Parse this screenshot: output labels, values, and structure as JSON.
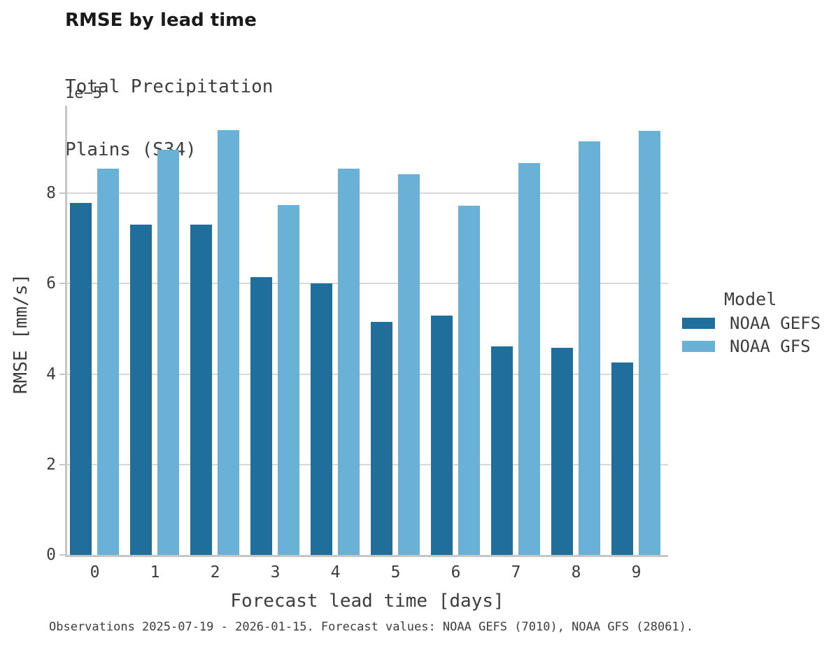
{
  "header": {
    "title": "RMSE by lead time",
    "subtitle_line1": "Total Precipitation",
    "subtitle_line2": "Plains (S34)"
  },
  "axes": {
    "xlabel": "Forecast lead time [days]",
    "ylabel": "RMSE [mm/s]",
    "y_offset_label": "1e−5"
  },
  "legend": {
    "title": "Model",
    "entries": [
      {
        "label": "NOAA GEFS",
        "color": "#1f6e9c"
      },
      {
        "label": "NOAA GFS",
        "color": "#69b1d7"
      }
    ]
  },
  "caption": "Observations 2025-07-19 - 2026-01-15. Forecast values: NOAA GEFS (7010), NOAA GFS (28061).",
  "colors": {
    "gefs_bar": "#1f6e9c",
    "gfs_bar": "#69b1d7",
    "gridline": "#d8d8d8",
    "spine": "#c6c6c6",
    "text": "#3d3d3d",
    "title_text": "#1a1a1a"
  },
  "chart_data": {
    "type": "bar",
    "title": "RMSE by lead time",
    "subtitle": [
      "Total Precipitation",
      "Plains (S34)"
    ],
    "categories": [
      "0",
      "1",
      "2",
      "3",
      "4",
      "5",
      "6",
      "7",
      "8",
      "9"
    ],
    "series": [
      {
        "name": "NOAA GEFS",
        "color": "#1f6e9c",
        "values": [
          7.79,
          7.31,
          7.31,
          6.15,
          6.01,
          5.15,
          5.29,
          4.62,
          4.58,
          4.26
        ]
      },
      {
        "name": "NOAA GFS",
        "color": "#69b1d7",
        "values": [
          8.54,
          8.96,
          9.4,
          7.74,
          8.54,
          8.42,
          7.72,
          8.67,
          9.15,
          9.38
        ]
      }
    ],
    "value_scale": "1e−5",
    "units": "mm/s",
    "xlabel": "Forecast lead time [days]",
    "ylabel": "RMSE [mm/s]",
    "ylim": [
      0,
      9.93
    ],
    "yticks": [
      0,
      2,
      4,
      6,
      8
    ],
    "grid": "horizontal-major",
    "legend_position": "right-center"
  }
}
